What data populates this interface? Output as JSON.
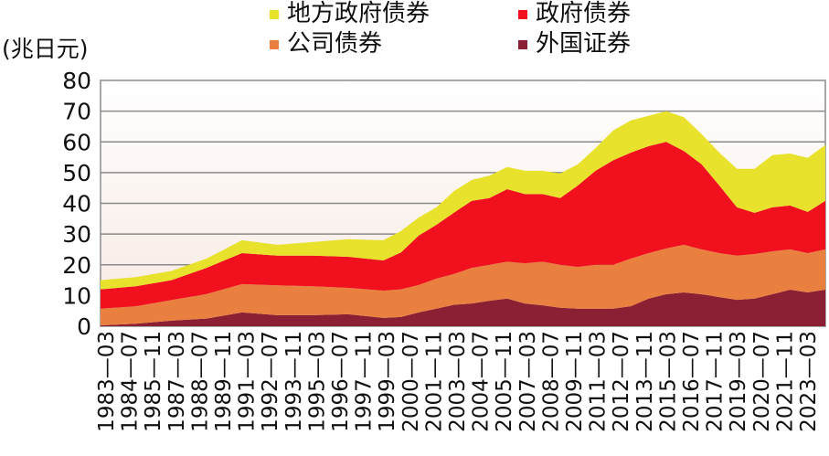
{
  "chart_data": {
    "type": "area",
    "stacked": true,
    "title": "",
    "ylabel": "(兆日元)",
    "xlabel": "",
    "ylim": [
      0,
      80
    ],
    "yticks": [
      0,
      10,
      20,
      30,
      40,
      50,
      60,
      70,
      80
    ],
    "grid": "horizontal",
    "legend_position": "top",
    "xtick_labels": [
      "1983—03",
      "1984—07",
      "1985—11",
      "1987—03",
      "1988—07",
      "1989—11",
      "1991—03",
      "1992—07",
      "1993—11",
      "1995—03",
      "1996—07",
      "1997—11",
      "1999—03",
      "2000—07",
      "2001—11",
      "2003—03",
      "2004—07",
      "2005—11",
      "2007—03",
      "2008—07",
      "2009—11",
      "2011—03",
      "2012—07",
      "2013—11",
      "2015—03",
      "2016—07",
      "2017—11",
      "2019—03",
      "2020—07",
      "2021—11",
      "2023—03"
    ],
    "x": [
      "1983-03",
      "1985-03",
      "1987-03",
      "1989-03",
      "1991-03",
      "1993-03",
      "1995-03",
      "1997-03",
      "1999-03",
      "2000-03",
      "2001-03",
      "2002-03",
      "2003-03",
      "2004-03",
      "2005-03",
      "2006-03",
      "2007-03",
      "2008-03",
      "2009-03",
      "2010-03",
      "2011-03",
      "2012-03",
      "2013-03",
      "2014-03",
      "2015-03",
      "2016-03",
      "2017-03",
      "2018-03",
      "2019-03",
      "2020-03",
      "2021-03",
      "2022-03",
      "2023-03",
      "2024-03"
    ],
    "series": [
      {
        "name": "外国证券",
        "color": "#8b1f33",
        "values": [
          0.3,
          0.8,
          1.8,
          2.5,
          4.5,
          3.6,
          3.6,
          3.9,
          2.7,
          3,
          4.5,
          5.7,
          7,
          7.4,
          8.3,
          9,
          7.4,
          6.8,
          6,
          5.7,
          5.7,
          5.7,
          6.5,
          9,
          10.4,
          11,
          10.4,
          9.5,
          8.6,
          9,
          10.4,
          11.9,
          11,
          11.9
        ]
      },
      {
        "name": "公司债券",
        "color": "#ea8040",
        "values": [
          5.4,
          5.7,
          6.7,
          8,
          9.2,
          9.7,
          9.4,
          8.6,
          8.9,
          9,
          8.9,
          9.8,
          10,
          11.6,
          11.7,
          12,
          13.1,
          14.2,
          14,
          13.6,
          14.3,
          14.3,
          15.5,
          14.8,
          14.9,
          15.5,
          14.6,
          14.3,
          14.4,
          14.5,
          14,
          13.1,
          12.8,
          13.1
        ]
      },
      {
        "name": "政府债券",
        "color": "#f0101e",
        "values": [
          6.3,
          6.5,
          6.5,
          8.5,
          10.1,
          9.7,
          10,
          10.1,
          9.8,
          12,
          16.1,
          17.5,
          20,
          21.8,
          21.7,
          23.6,
          22.5,
          22,
          21.7,
          26.5,
          30.6,
          34,
          34.5,
          34.8,
          34.7,
          30.5,
          27.7,
          22,
          15.7,
          13.4,
          14.3,
          14.3,
          13.4,
          15.8
        ]
      },
      {
        "name": "地方政府债券",
        "color": "#e8e22c",
        "values": [
          3,
          3,
          3,
          3,
          4.2,
          3.5,
          4.4,
          5.7,
          6.6,
          7,
          5.9,
          5.7,
          7,
          6.8,
          7.3,
          7.2,
          7.6,
          7.6,
          8,
          6.9,
          7.4,
          9.7,
          10.5,
          9.9,
          10,
          11,
          9.8,
          10.7,
          12.5,
          14.3,
          17,
          16.9,
          17.6,
          18.2
        ]
      }
    ]
  }
}
